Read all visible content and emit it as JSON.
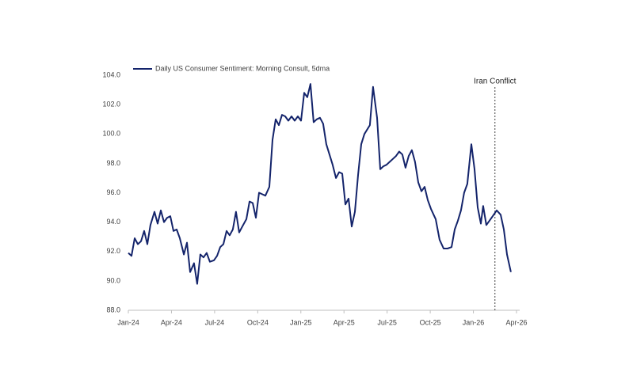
{
  "chart_data": {
    "type": "line",
    "annotation": {
      "text": "Iran Conflict",
      "x": 25.5
    },
    "xlim": [
      0,
      27
    ],
    "xticks": [
      {
        "value": 0,
        "label": "Jan-24"
      },
      {
        "value": 3,
        "label": "Apr-24"
      },
      {
        "value": 6,
        "label": "Jul-24"
      },
      {
        "value": 9,
        "label": "Oct-24"
      },
      {
        "value": 12,
        "label": "Jan-25"
      },
      {
        "value": 15,
        "label": "Apr-25"
      },
      {
        "value": 18,
        "label": "Jul-25"
      },
      {
        "value": 21,
        "label": "Oct-25"
      },
      {
        "value": 24,
        "label": "Jan-26"
      },
      {
        "value": 27,
        "label": "Apr-26"
      }
    ],
    "ylim": [
      88,
      104
    ],
    "yticks": [
      {
        "value": 88,
        "label": "88.0"
      },
      {
        "value": 90,
        "label": "90.0"
      },
      {
        "value": 92,
        "label": "92.0"
      },
      {
        "value": 94,
        "label": "94.0"
      },
      {
        "value": 96,
        "label": "96.0"
      },
      {
        "value": 98,
        "label": "98.0"
      },
      {
        "value": 100,
        "label": "100.0"
      },
      {
        "value": 102,
        "label": "102.0"
      },
      {
        "value": 104,
        "label": "104.0"
      }
    ],
    "legend": "top-left",
    "x": [
      0,
      0.22,
      0.44,
      0.66,
      0.88,
      1.1,
      1.32,
      1.54,
      1.82,
      2.04,
      2.26,
      2.48,
      2.7,
      2.92,
      3.14,
      3.36,
      3.58,
      3.86,
      4.08,
      4.3,
      4.57,
      4.79,
      5.01,
      5.23,
      5.45,
      5.67,
      5.95,
      6.17,
      6.39,
      6.61,
      6.83,
      7.05,
      7.27,
      7.49,
      7.71,
      7.93,
      8.21,
      8.43,
      8.65,
      8.87,
      9.09,
      9.31,
      9.53,
      9.81,
      10.03,
      10.25,
      10.47,
      10.69,
      10.91,
      11.13,
      11.35,
      11.57,
      11.79,
      12.01,
      12.23,
      12.45,
      12.67,
      12.89,
      13.11,
      13.33,
      13.55,
      13.77,
      13.99,
      14.21,
      14.44,
      14.66,
      14.88,
      15.1,
      15.32,
      15.54,
      15.76,
      15.98,
      16.2,
      16.42,
      16.8,
      17.02,
      17.3,
      17.52,
      17.74,
      17.96,
      18.18,
      18.4,
      18.62,
      18.84,
      19.06,
      19.28,
      19.5,
      19.72,
      19.94,
      20.17,
      20.39,
      20.61,
      20.83,
      21.05,
      21.38,
      21.65,
      21.93,
      22.2,
      22.48,
      22.7,
      22.92,
      23.14,
      23.36,
      23.58,
      23.86,
      24.08,
      24.3,
      24.52,
      24.68,
      24.9,
      25.12,
      25.34,
      25.62,
      25.9,
      26.12,
      26.34,
      26.61
    ],
    "series": [
      {
        "name": "Daily US Consumer Sentiment: Morning Consult, 5dma",
        "color": "#14246b",
        "values": [
          91.9,
          91.7,
          92.9,
          92.5,
          92.7,
          93.4,
          92.5,
          93.8,
          94.7,
          93.9,
          94.8,
          94.0,
          94.3,
          94.4,
          93.4,
          93.5,
          92.9,
          91.8,
          92.6,
          90.6,
          91.2,
          89.8,
          91.8,
          91.6,
          91.9,
          91.3,
          91.4,
          91.7,
          92.3,
          92.5,
          93.4,
          93.1,
          93.5,
          94.7,
          93.3,
          93.7,
          94.2,
          95.4,
          95.3,
          94.3,
          96.0,
          95.9,
          95.8,
          96.4,
          99.6,
          101.0,
          100.6,
          101.3,
          101.2,
          100.9,
          101.2,
          100.9,
          101.2,
          100.9,
          102.8,
          102.5,
          103.4,
          100.8,
          101.0,
          101.1,
          100.7,
          99.3,
          98.6,
          97.9,
          97.0,
          97.4,
          97.3,
          95.2,
          95.6,
          93.7,
          94.7,
          97.2,
          99.3,
          100.0,
          100.6,
          103.2,
          101.1,
          97.6,
          97.8,
          97.9,
          98.1,
          98.3,
          98.5,
          98.8,
          98.6,
          97.7,
          98.5,
          98.9,
          98.1,
          96.7,
          96.1,
          96.4,
          95.5,
          94.9,
          94.2,
          92.8,
          92.2,
          92.2,
          92.3,
          93.5,
          94.1,
          94.8,
          96.0,
          96.6,
          99.3,
          97.6,
          95.0,
          93.9,
          95.1,
          93.8,
          94.1,
          94.4,
          94.8,
          94.5,
          93.5,
          91.8,
          90.6
        ]
      }
    ]
  }
}
